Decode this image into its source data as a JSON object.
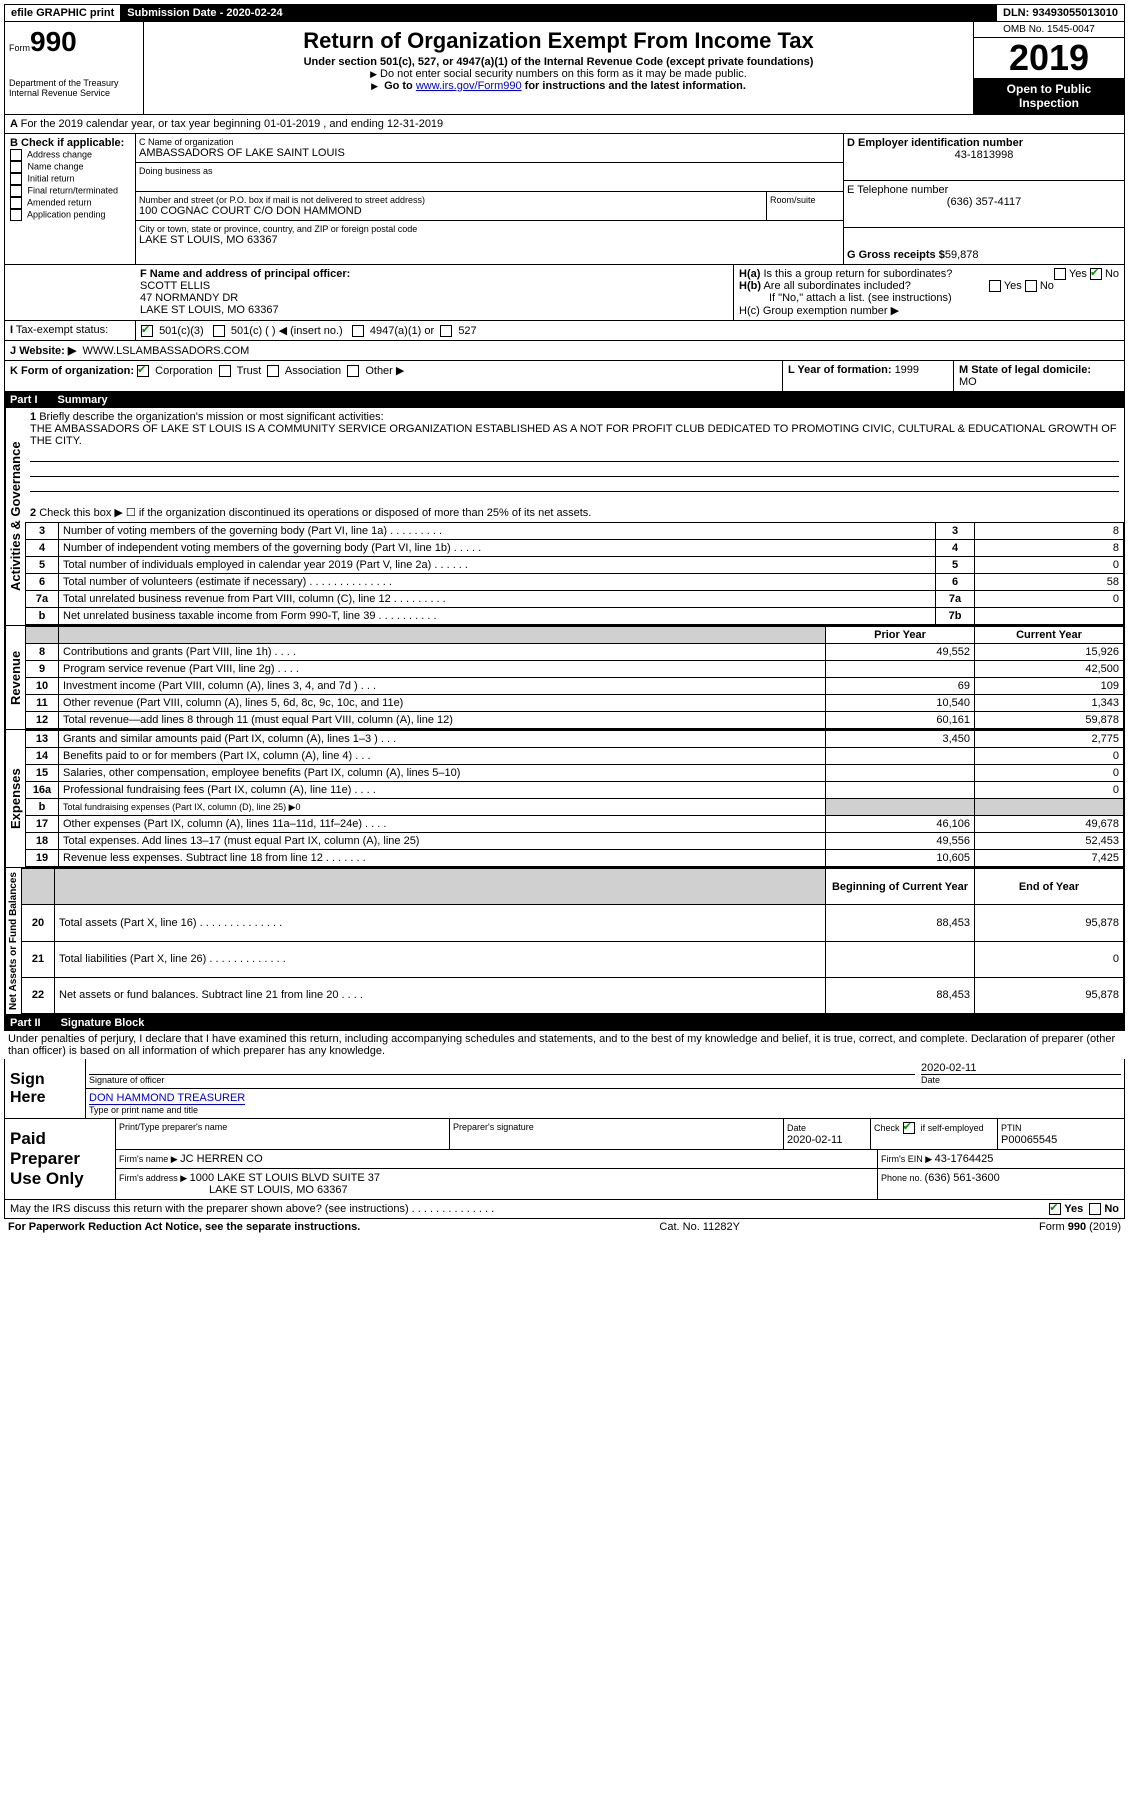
{
  "topbar": {
    "efile": "efile GRAPHIC print",
    "subdate_label": "Submission Date - ",
    "subdate": "2020-02-24",
    "dln_label": "DLN: ",
    "dln": "93493055013010"
  },
  "header": {
    "form_prefix": "Form",
    "form_num": "990",
    "dept": "Department of the Treasury\nInternal Revenue Service",
    "title": "Return of Organization Exempt From Income Tax",
    "subtitle": "Under section 501(c), 527, or 4947(a)(1) of the Internal Revenue Code (except private foundations)",
    "line1": "Do not enter social security numbers on this form as it may be made public.",
    "line2_pre": "Go to ",
    "line2_link": "www.irs.gov/Form990",
    "line2_post": " for instructions and the latest information.",
    "omb": "OMB No. 1545-0047",
    "year": "2019",
    "open": "Open to Public Inspection"
  },
  "sectionA": {
    "line": "For the 2019 calendar year, or tax year beginning 01-01-2019     , and ending 12-31-2019",
    "b_label": "B Check if applicable:",
    "b_items": [
      "Address change",
      "Name change",
      "Initial return",
      "Final return/terminated",
      "Amended return",
      "Application pending"
    ],
    "c_label": "C Name of organization",
    "c_name": "AMBASSADORS OF LAKE SAINT LOUIS",
    "dba_label": "Doing business as",
    "addr_label": "Number and street (or P.O. box if mail is not delivered to street address)",
    "room_label": "Room/suite",
    "addr": "100 COGNAC COURT C/O DON HAMMOND",
    "city_label": "City or town, state or province, country, and ZIP or foreign postal code",
    "city": "LAKE ST LOUIS, MO  63367",
    "d_label": "D Employer identification number",
    "ein": "43-1813998",
    "e_label": "E Telephone number",
    "phone": "(636) 357-4117",
    "g_label": "G Gross receipts $ ",
    "g_val": "59,878",
    "f_label": "F  Name and address of principal officer:",
    "officer_name": "SCOTT ELLIS",
    "officer_addr1": "47 NORMANDY DR",
    "officer_addr2": "LAKE ST LOUIS, MO  63367",
    "ha_label": "H(a)  Is this a group return for subordinates?",
    "hb_label": "H(b)  Are all subordinates included?",
    "hb_note": "If \"No,\" attach a list. (see instructions)",
    "hc_label": "H(c)  Group exemption number ▶",
    "yes": "Yes",
    "no": "No",
    "i_label": "Tax-exempt status:",
    "i_501c3": "501(c)(3)",
    "i_501c": "501(c) (  ) ◀ (insert no.)",
    "i_4947": "4947(a)(1) or",
    "i_527": "527",
    "j_label": "Website: ▶",
    "website": "WWW.LSLAMBASSADORS.COM",
    "k_label": "K Form of organization:",
    "k_items": [
      "Corporation",
      "Trust",
      "Association",
      "Other ▶"
    ],
    "l_label": "L Year of formation: ",
    "l_val": "1999",
    "m_label": "M State of legal domicile:",
    "m_val": "MO"
  },
  "part1": {
    "label": "Part I",
    "title": "Summary",
    "q1": "Briefly describe the organization's mission or most significant activities:",
    "mission": "THE AMBASSADORS OF LAKE ST LOUIS IS A COMMUNITY SERVICE ORGANIZATION ESTABLISHED AS A NOT FOR PROFIT CLUB DEDICATED TO PROMOTING CIVIC, CULTURAL & EDUCATIONAL GROWTH OF THE CITY.",
    "q2": "Check this box ▶ ☐  if the organization discontinued its operations or disposed of more than 25% of its net assets.",
    "prior_year": "Prior Year",
    "current_year": "Current Year",
    "beg_year": "Beginning of Current Year",
    "end_year": "End of Year",
    "sections": {
      "gov": "Activities & Governance",
      "rev": "Revenue",
      "exp": "Expenses",
      "net": "Net Assets or Fund Balances"
    },
    "rows_gov": [
      {
        "n": "3",
        "d": "Number of voting members of the governing body (Part VI, line 1a)   .   .   .   .   .   .   .   .   .",
        "b": "3",
        "v": "8"
      },
      {
        "n": "4",
        "d": "Number of independent voting members of the governing body (Part VI, line 1b)   .   .   .   .   .",
        "b": "4",
        "v": "8"
      },
      {
        "n": "5",
        "d": "Total number of individuals employed in calendar year 2019 (Part V, line 2a)   .   .   .   .   .   .",
        "b": "5",
        "v": "0"
      },
      {
        "n": "6",
        "d": "Total number of volunteers (estimate if necessary)   .   .   .   .   .   .   .   .   .   .   .   .   .   .",
        "b": "6",
        "v": "58"
      },
      {
        "n": "7a",
        "d": "Total unrelated business revenue from Part VIII, column (C), line 12   .   .   .   .   .   .   .   .   .",
        "b": "7a",
        "v": "0"
      },
      {
        "n": "b",
        "d": "Net unrelated business taxable income from Form 990-T, line 39   .   .   .   .   .   .   .   .   .   .",
        "b": "7b",
        "v": ""
      }
    ],
    "rows_rev": [
      {
        "n": "8",
        "d": "Contributions and grants (Part VIII, line 1h)    .   .   .   .",
        "p": "49,552",
        "c": "15,926"
      },
      {
        "n": "9",
        "d": "Program service revenue (Part VIII, line 2g)    .   .   .   .",
        "p": "",
        "c": "42,500"
      },
      {
        "n": "10",
        "d": "Investment income (Part VIII, column (A), lines 3, 4, and 7d )    .   .   .",
        "p": "69",
        "c": "109"
      },
      {
        "n": "11",
        "d": "Other revenue (Part VIII, column (A), lines 5, 6d, 8c, 9c, 10c, and 11e)",
        "p": "10,540",
        "c": "1,343"
      },
      {
        "n": "12",
        "d": "Total revenue—add lines 8 through 11 (must equal Part VIII, column (A), line 12)",
        "p": "60,161",
        "c": "59,878"
      }
    ],
    "rows_exp": [
      {
        "n": "13",
        "d": "Grants and similar amounts paid (Part IX, column (A), lines 1–3 )    .   .   .",
        "p": "3,450",
        "c": "2,775"
      },
      {
        "n": "14",
        "d": "Benefits paid to or for members (Part IX, column (A), line 4)    .   .   .",
        "p": "",
        "c": "0"
      },
      {
        "n": "15",
        "d": "Salaries, other compensation, employee benefits (Part IX, column (A), lines 5–10)",
        "p": "",
        "c": "0"
      },
      {
        "n": "16a",
        "d": "Professional fundraising fees (Part IX, column (A), line 11e)    .   .   .   .",
        "p": "",
        "c": "0"
      },
      {
        "n": "b",
        "d": "Total fundraising expenses (Part IX, column (D), line 25) ▶0",
        "shade": true
      },
      {
        "n": "17",
        "d": "Other expenses (Part IX, column (A), lines 11a–11d, 11f–24e)    .   .   .   .",
        "p": "46,106",
        "c": "49,678"
      },
      {
        "n": "18",
        "d": "Total expenses. Add lines 13–17 (must equal Part IX, column (A), line 25)",
        "p": "49,556",
        "c": "52,453"
      },
      {
        "n": "19",
        "d": "Revenue less expenses. Subtract line 18 from line 12   .   .   .   .   .   .   .",
        "p": "10,605",
        "c": "7,425"
      }
    ],
    "rows_net": [
      {
        "n": "20",
        "d": "Total assets (Part X, line 16)   .   .   .   .   .   .   .   .   .   .   .   .   .   .",
        "p": "88,453",
        "c": "95,878"
      },
      {
        "n": "21",
        "d": "Total liabilities (Part X, line 26)   .   .   .   .   .   .   .   .   .   .   .   .   .",
        "p": "",
        "c": "0"
      },
      {
        "n": "22",
        "d": "Net assets or fund balances. Subtract line 21 from line 20    .   .   .   .",
        "p": "88,453",
        "c": "95,878"
      }
    ]
  },
  "part2": {
    "label": "Part II",
    "title": "Signature Block",
    "decl": "Under penalties of perjury, I declare that I have examined this return, including accompanying schedules and statements, and to the best of my knowledge and belief, it is true, correct, and complete. Declaration of preparer (other than officer) is based on all information of which preparer has any knowledge.",
    "sign_here": "Sign Here",
    "sig_officer": "Signature of officer",
    "date": "Date",
    "sig_date": "2020-02-11",
    "name_title": "DON HAMMOND TREASURER",
    "name_title_label": "Type or print name and title",
    "paid": "Paid Preparer Use Only",
    "prep_name_label": "Print/Type preparer's name",
    "prep_sig_label": "Preparer's signature",
    "prep_date": "2020-02-11",
    "check_if": "Check ☑ if self-employed",
    "ptin_label": "PTIN",
    "ptin": "P00065545",
    "firm_name_label": "Firm's name     ▶ ",
    "firm_name": "JC HERREN CO",
    "firm_ein_label": "Firm's EIN ▶ ",
    "firm_ein": "43-1764425",
    "firm_addr_label": "Firm's address ▶ ",
    "firm_addr1": "1000 LAKE ST LOUIS BLVD SUITE 37",
    "firm_addr2": "LAKE ST LOUIS, MO  63367",
    "phone_label": "Phone no. ",
    "phone": "(636) 561-3600",
    "discuss": "May the IRS discuss this return with the preparer shown above? (see instructions)   .   .   .   .   .   .   .   .   .   .   .   .   .   .",
    "paperwork": "For Paperwork Reduction Act Notice, see the separate instructions.",
    "cat": "Cat. No. 11282Y",
    "formno": "Form 990 (2019)"
  }
}
